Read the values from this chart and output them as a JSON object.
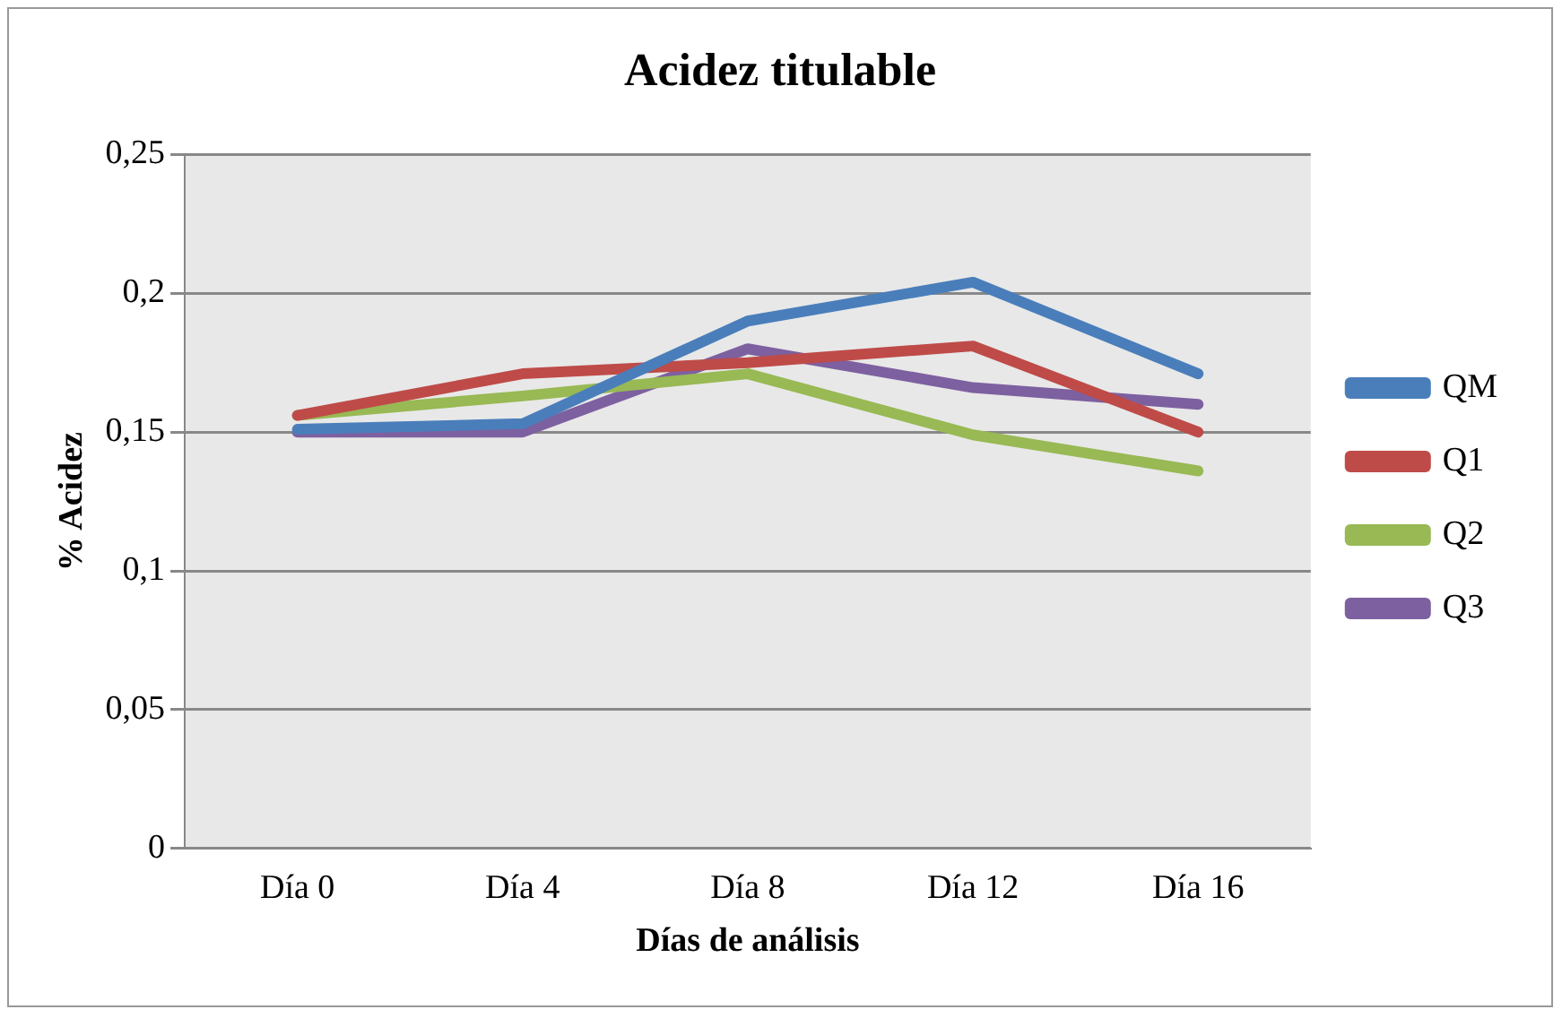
{
  "chart_data": {
    "type": "line",
    "title": "Acidez titulable",
    "xlabel": "Días de análisis",
    "ylabel": "% Acidez",
    "categories": [
      "Día 0",
      "Día 4",
      "Día 8",
      "Día 12",
      "Día 16"
    ],
    "series": [
      {
        "name": "QM",
        "color": "#4a7ebb",
        "values": [
          0.151,
          0.153,
          0.19,
          0.204,
          0.171
        ]
      },
      {
        "name": "Q1",
        "color": "#be4b48",
        "values": [
          0.156,
          0.171,
          0.175,
          0.181,
          0.15
        ]
      },
      {
        "name": "Q2",
        "color": "#98b954",
        "values": [
          0.156,
          0.163,
          0.171,
          0.149,
          0.136
        ]
      },
      {
        "name": "Q3",
        "color": "#7d60a0",
        "values": [
          0.15,
          0.15,
          0.18,
          0.166,
          0.16
        ]
      }
    ],
    "ylim": [
      0,
      0.25
    ],
    "yticks": [
      {
        "value": 0,
        "label": "0"
      },
      {
        "value": 0.05,
        "label": "0,05"
      },
      {
        "value": 0.1,
        "label": "0,1"
      },
      {
        "value": 0.15,
        "label": "0,15"
      },
      {
        "value": 0.2,
        "label": "0,2"
      },
      {
        "value": 0.25,
        "label": "0,25"
      }
    ],
    "grid": "y",
    "legend": "right",
    "marker": "none",
    "line_style": "solid"
  }
}
